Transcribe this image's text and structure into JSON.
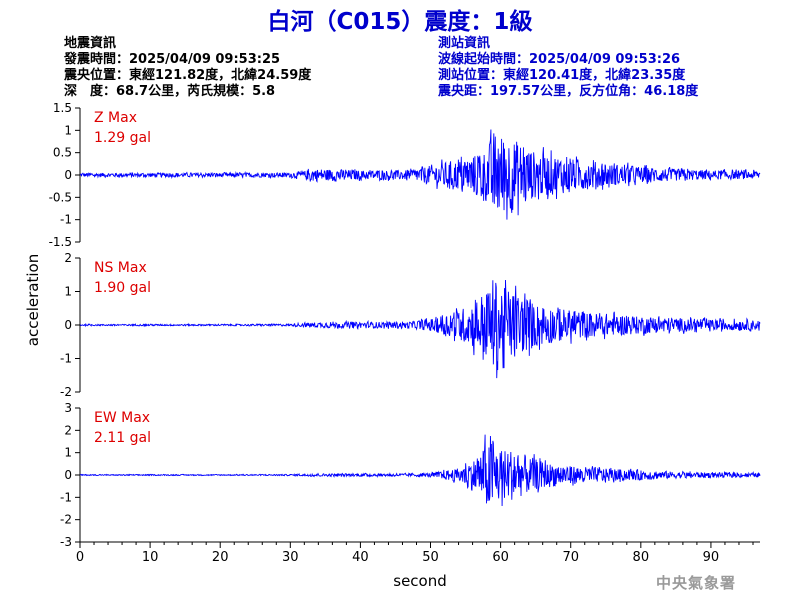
{
  "title": "白河（C015）震度：1級",
  "earthquake_info": {
    "heading": "地震資訊",
    "origin_time": "發震時間：2025/04/09 09:53:25",
    "epicenter": "震央位置：東經121.82度，北緯24.59度",
    "depth_magnitude": "深　度：68.7公里，芮氏規模：5.8"
  },
  "station_info": {
    "heading": "測站資訊",
    "wave_start": "波線起始時間：2025/04/09 09:53:26",
    "station_location": "測站位置：東經120.41度，北緯23.35度",
    "distance_azimuth": "震央距：197.57公里，反方位角：46.18度"
  },
  "credit": "中央氣象署",
  "colors": {
    "trace": "#0000ff",
    "max_label": "#dd0000",
    "title": "#0000cc",
    "axis": "#000000"
  },
  "chart_data": {
    "type": "line",
    "xlabel": "second",
    "ylabel": "acceleration",
    "xlim": [
      0,
      97
    ],
    "xticks": [
      0,
      10,
      20,
      30,
      40,
      50,
      60,
      70,
      80,
      90
    ],
    "series": [
      {
        "name": "Z Max",
        "max_value": "1.29 gal",
        "ylim": [
          -1.5,
          1.5
        ],
        "yticks": [
          -1.5,
          -1,
          -0.5,
          0,
          0.5,
          1,
          1.5
        ],
        "envelope_x": [
          0,
          10,
          20,
          30,
          32,
          33,
          40,
          47,
          50,
          55,
          58,
          59,
          61,
          63,
          65,
          70,
          75,
          80,
          85,
          90,
          97
        ],
        "envelope_amp": [
          0.06,
          0.06,
          0.06,
          0.07,
          0.12,
          0.2,
          0.14,
          0.14,
          0.3,
          0.5,
          0.8,
          1.29,
          1.2,
          0.95,
          0.7,
          0.5,
          0.35,
          0.25,
          0.18,
          0.14,
          0.12
        ]
      },
      {
        "name": "NS Max",
        "max_value": "1.90 gal",
        "ylim": [
          -2,
          2
        ],
        "yticks": [
          -2,
          -1,
          0,
          1,
          2
        ],
        "envelope_x": [
          0,
          10,
          20,
          30,
          33,
          40,
          47,
          50,
          55,
          58,
          59,
          61,
          63,
          65,
          70,
          75,
          80,
          85,
          90,
          97
        ],
        "envelope_amp": [
          0.03,
          0.03,
          0.03,
          0.04,
          0.1,
          0.12,
          0.12,
          0.25,
          0.7,
          1.4,
          1.9,
          1.5,
          1.2,
          0.9,
          0.6,
          0.45,
          0.35,
          0.28,
          0.22,
          0.2
        ]
      },
      {
        "name": "EW Max",
        "max_value": "2.11 gal",
        "ylim": [
          -3,
          3
        ],
        "yticks": [
          -3,
          -2,
          -1,
          0,
          1,
          2,
          3
        ],
        "envelope_x": [
          0,
          10,
          20,
          30,
          33,
          40,
          47,
          50,
          54,
          57,
          58,
          60,
          62,
          64,
          66,
          70,
          75,
          80,
          85,
          90,
          97
        ],
        "envelope_amp": [
          0.03,
          0.03,
          0.03,
          0.04,
          0.08,
          0.08,
          0.08,
          0.12,
          0.4,
          1.2,
          2.11,
          1.7,
          1.5,
          1.1,
          0.8,
          0.55,
          0.4,
          0.3,
          0.2,
          0.15,
          0.12
        ]
      }
    ]
  }
}
